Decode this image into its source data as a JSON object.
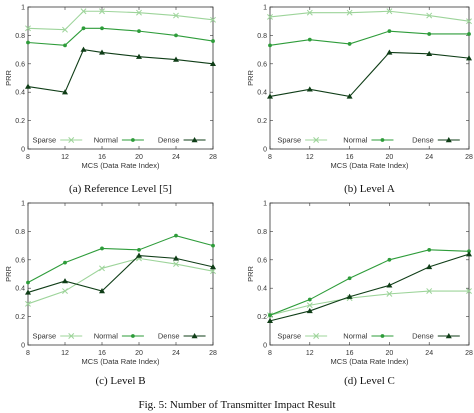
{
  "figure_caption": "Fig. 5: Number of Transmitter Impact Result",
  "colors": {
    "sparse": "#9dd49a",
    "normal": "#2e9c3a",
    "dense": "#0f3d17"
  },
  "chart_data": [
    {
      "type": "line",
      "caption": "(a) Reference Level [5]",
      "xlabel": "MCS (Data Rate Index)",
      "ylabel": "PRR",
      "x": [
        8,
        12,
        14,
        16,
        20,
        24,
        28
      ],
      "xticks": [
        "8",
        "12",
        "16",
        "20",
        "24",
        "28"
      ],
      "yticks": [
        "0",
        "0.2",
        "0.4",
        "0.6",
        "0.8",
        "1"
      ],
      "xlim": [
        8,
        28
      ],
      "ylim": [
        0,
        1
      ],
      "legend_position": "bottom",
      "series": [
        {
          "name": "Sparse",
          "marker": "x",
          "color": "#9dd49a",
          "values": [
            0.85,
            0.84,
            0.97,
            0.97,
            0.96,
            0.94,
            0.91
          ]
        },
        {
          "name": "Normal",
          "marker": "circle",
          "color": "#2e9c3a",
          "values": [
            0.75,
            0.73,
            0.85,
            0.85,
            0.83,
            0.8,
            0.76
          ]
        },
        {
          "name": "Dense",
          "marker": "triangle",
          "color": "#0f3d17",
          "values": [
            0.44,
            0.4,
            0.7,
            0.68,
            0.65,
            0.63,
            0.6
          ]
        }
      ]
    },
    {
      "type": "line",
      "caption": "(b) Level A",
      "xlabel": "MCS (Data Rate Index)",
      "ylabel": "PRR",
      "x": [
        8,
        12,
        16,
        20,
        24,
        28
      ],
      "xticks": [
        "8",
        "12",
        "16",
        "20",
        "24",
        "28"
      ],
      "yticks": [
        "0",
        "0.2",
        "0.4",
        "0.6",
        "0.8",
        "1"
      ],
      "xlim": [
        8,
        28
      ],
      "ylim": [
        0,
        1
      ],
      "legend_position": "bottom",
      "series": [
        {
          "name": "Sparse",
          "marker": "x",
          "color": "#9dd49a",
          "values": [
            0.93,
            0.96,
            0.96,
            0.97,
            0.94,
            0.9
          ]
        },
        {
          "name": "Normal",
          "marker": "circle",
          "color": "#2e9c3a",
          "values": [
            0.73,
            0.77,
            0.74,
            0.83,
            0.81,
            0.81
          ]
        },
        {
          "name": "Dense",
          "marker": "triangle",
          "color": "#0f3d17",
          "values": [
            0.37,
            0.42,
            0.37,
            0.68,
            0.67,
            0.64
          ]
        }
      ]
    },
    {
      "type": "line",
      "caption": "(c) Level B",
      "xlabel": "MCS (Data Rate Index)",
      "ylabel": "PRR",
      "x": [
        8,
        12,
        16,
        20,
        24,
        28
      ],
      "xticks": [
        "8",
        "12",
        "16",
        "20",
        "24",
        "28"
      ],
      "yticks": [
        "0",
        "0.2",
        "0.4",
        "0.6",
        "0.8",
        "1"
      ],
      "xlim": [
        8,
        28
      ],
      "ylim": [
        0,
        1
      ],
      "legend_position": "bottom",
      "series": [
        {
          "name": "Sparse",
          "marker": "x",
          "color": "#9dd49a",
          "values": [
            0.29,
            0.38,
            0.54,
            0.61,
            0.57,
            0.52
          ]
        },
        {
          "name": "Normal",
          "marker": "circle",
          "color": "#2e9c3a",
          "values": [
            0.44,
            0.58,
            0.68,
            0.67,
            0.77,
            0.7
          ]
        },
        {
          "name": "Dense",
          "marker": "triangle",
          "color": "#0f3d17",
          "values": [
            0.37,
            0.45,
            0.38,
            0.63,
            0.61,
            0.55
          ]
        }
      ]
    },
    {
      "type": "line",
      "caption": "(d) Level C",
      "xlabel": "MCS (Data Rate Index)",
      "ylabel": "PRR",
      "x": [
        8,
        12,
        16,
        20,
        24,
        28
      ],
      "xticks": [
        "8",
        "12",
        "16",
        "20",
        "24",
        "28"
      ],
      "yticks": [
        "0",
        "0.2",
        "0.4",
        "0.6",
        "0.8",
        "1"
      ],
      "xlim": [
        8,
        28
      ],
      "ylim": [
        0,
        1
      ],
      "legend_position": "bottom",
      "series": [
        {
          "name": "Sparse",
          "marker": "x",
          "color": "#9dd49a",
          "values": [
            0.21,
            0.28,
            0.33,
            0.36,
            0.38,
            0.38
          ]
        },
        {
          "name": "Normal",
          "marker": "circle",
          "color": "#2e9c3a",
          "values": [
            0.21,
            0.32,
            0.47,
            0.6,
            0.67,
            0.66
          ]
        },
        {
          "name": "Dense",
          "marker": "triangle",
          "color": "#0f3d17",
          "values": [
            0.17,
            0.24,
            0.34,
            0.42,
            0.55,
            0.64
          ]
        }
      ]
    }
  ]
}
